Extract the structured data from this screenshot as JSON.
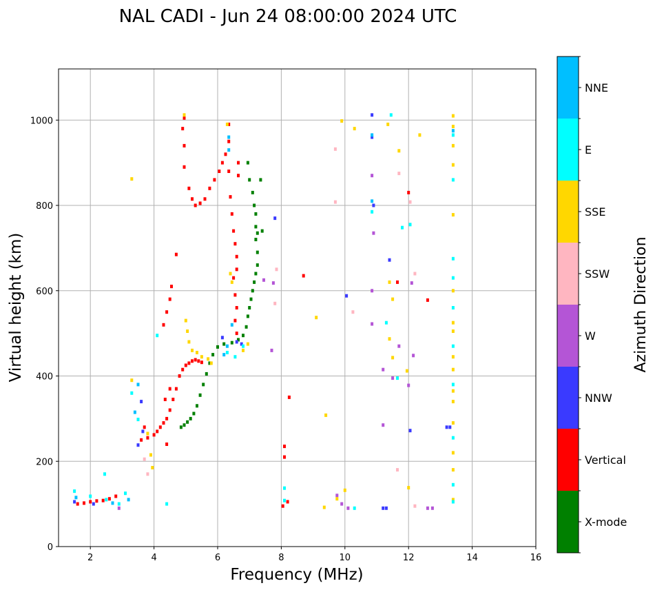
{
  "chart_data": {
    "type": "scatter",
    "title": "NAL CADI - Jun 24 08:00:00 2024 UTC",
    "xlabel": "Frequency (MHz)",
    "ylabel": "Virtual height (km)",
    "xlim": [
      1,
      16
    ],
    "ylim": [
      0,
      1120
    ],
    "x_ticks": [
      2,
      4,
      6,
      8,
      10,
      12,
      14,
      16
    ],
    "y_ticks": [
      0,
      200,
      400,
      600,
      800,
      1000
    ],
    "grid": true,
    "colorbar": {
      "label": "Azimuth Direction",
      "categories": [
        {
          "name": "X-mode",
          "color": "#008000"
        },
        {
          "name": "Vertical",
          "color": "#ff0000"
        },
        {
          "name": "NNW",
          "color": "#3a3aff"
        },
        {
          "name": "W",
          "color": "#b455d6"
        },
        {
          "name": "SSW",
          "color": "#ffb6c1"
        },
        {
          "name": "SSE",
          "color": "#ffd700"
        },
        {
          "name": "E",
          "color": "#00ffff"
        },
        {
          "name": "NNE",
          "color": "#00bfff"
        }
      ]
    },
    "series": [
      {
        "name": "X-mode",
        "points": [
          [
            4.85,
            280
          ],
          [
            4.95,
            285
          ],
          [
            5.05,
            292
          ],
          [
            5.15,
            300
          ],
          [
            5.25,
            312
          ],
          [
            5.35,
            330
          ],
          [
            5.45,
            355
          ],
          [
            5.55,
            380
          ],
          [
            5.65,
            405
          ],
          [
            5.75,
            430
          ],
          [
            5.85,
            450
          ],
          [
            6.0,
            468
          ],
          [
            6.2,
            475
          ],
          [
            6.45,
            478
          ],
          [
            6.65,
            485
          ],
          [
            6.8,
            495
          ],
          [
            6.9,
            515
          ],
          [
            6.95,
            540
          ],
          [
            7.0,
            560
          ],
          [
            7.05,
            580
          ],
          [
            7.1,
            600
          ],
          [
            7.15,
            620
          ],
          [
            7.2,
            640
          ],
          [
            7.25,
            660
          ],
          [
            7.25,
            690
          ],
          [
            7.2,
            720
          ],
          [
            7.2,
            750
          ],
          [
            7.2,
            780
          ],
          [
            7.15,
            800
          ],
          [
            7.1,
            830
          ],
          [
            7.0,
            860
          ],
          [
            6.95,
            900
          ],
          [
            7.35,
            860
          ],
          [
            7.25,
            735
          ],
          [
            7.4,
            740
          ]
        ]
      },
      {
        "name": "Vertical",
        "points": [
          [
            1.6,
            100
          ],
          [
            1.8,
            102
          ],
          [
            2.0,
            105
          ],
          [
            2.2,
            107
          ],
          [
            2.4,
            108
          ],
          [
            2.6,
            112
          ],
          [
            2.8,
            118
          ],
          [
            3.6,
            250
          ],
          [
            3.8,
            255
          ],
          [
            4.0,
            262
          ],
          [
            4.1,
            270
          ],
          [
            4.2,
            280
          ],
          [
            4.3,
            290
          ],
          [
            4.4,
            300
          ],
          [
            4.5,
            320
          ],
          [
            4.6,
            345
          ],
          [
            4.7,
            370
          ],
          [
            4.8,
            400
          ],
          [
            4.9,
            415
          ],
          [
            5.0,
            425
          ],
          [
            5.1,
            430
          ],
          [
            5.2,
            435
          ],
          [
            5.3,
            438
          ],
          [
            5.4,
            435
          ],
          [
            5.5,
            432
          ],
          [
            4.3,
            520
          ],
          [
            4.4,
            550
          ],
          [
            4.5,
            580
          ],
          [
            4.55,
            610
          ],
          [
            4.7,
            685
          ],
          [
            4.95,
            940
          ],
          [
            4.9,
            980
          ],
          [
            4.95,
            1005
          ],
          [
            4.95,
            890
          ],
          [
            5.1,
            840
          ],
          [
            5.2,
            815
          ],
          [
            5.3,
            800
          ],
          [
            5.45,
            805
          ],
          [
            5.6,
            815
          ],
          [
            5.75,
            840
          ],
          [
            5.9,
            860
          ],
          [
            6.05,
            880
          ],
          [
            6.15,
            900
          ],
          [
            6.25,
            920
          ],
          [
            6.35,
            950
          ],
          [
            6.35,
            990
          ],
          [
            6.35,
            880
          ],
          [
            6.4,
            820
          ],
          [
            6.45,
            780
          ],
          [
            6.5,
            740
          ],
          [
            6.55,
            710
          ],
          [
            6.6,
            680
          ],
          [
            6.6,
            650
          ],
          [
            6.5,
            630
          ],
          [
            6.55,
            590
          ],
          [
            6.6,
            560
          ],
          [
            6.55,
            530
          ],
          [
            6.6,
            500
          ],
          [
            6.65,
            870
          ],
          [
            6.65,
            900
          ],
          [
            4.4,
            240
          ],
          [
            3.7,
            280
          ],
          [
            4.35,
            345
          ],
          [
            4.5,
            370
          ],
          [
            8.1,
            210
          ],
          [
            8.1,
            235
          ],
          [
            8.25,
            350
          ],
          [
            8.7,
            635
          ],
          [
            12.0,
            830
          ],
          [
            12.6,
            578
          ],
          [
            11.65,
            620
          ],
          [
            8.2,
            105
          ],
          [
            8.05,
            95
          ]
        ]
      },
      {
        "name": "NNW",
        "points": [
          [
            1.5,
            105
          ],
          [
            2.1,
            100
          ],
          [
            3.5,
            238
          ],
          [
            3.65,
            270
          ],
          [
            3.6,
            340
          ],
          [
            6.15,
            490
          ],
          [
            6.6,
            480
          ],
          [
            6.75,
            475
          ],
          [
            7.8,
            770
          ],
          [
            10.9,
            800
          ],
          [
            11.4,
            672
          ],
          [
            10.85,
            960
          ],
          [
            10.85,
            1012
          ],
          [
            12.05,
            272
          ],
          [
            13.3,
            280
          ],
          [
            11.3,
            90
          ],
          [
            10.05,
            588
          ],
          [
            11.2,
            90
          ],
          [
            13.2,
            280
          ]
        ]
      },
      {
        "name": "W",
        "points": [
          [
            2.9,
            90
          ],
          [
            10.85,
            870
          ],
          [
            10.9,
            735
          ],
          [
            10.85,
            600
          ],
          [
            10.85,
            522
          ],
          [
            11.2,
            415
          ],
          [
            11.5,
            395
          ],
          [
            12.0,
            378
          ],
          [
            12.15,
            448
          ],
          [
            11.2,
            285
          ],
          [
            12.6,
            90
          ],
          [
            12.75,
            90
          ],
          [
            9.9,
            100
          ],
          [
            10.1,
            90
          ],
          [
            9.75,
            120
          ],
          [
            7.75,
            618
          ],
          [
            7.7,
            460
          ],
          [
            7.45,
            625
          ],
          [
            11.7,
            470
          ],
          [
            12.1,
            618
          ]
        ]
      },
      {
        "name": "SSW",
        "points": [
          [
            9.7,
            808
          ],
          [
            9.7,
            932
          ],
          [
            11.7,
            875
          ],
          [
            12.05,
            808
          ],
          [
            12.2,
            640
          ],
          [
            11.65,
            180
          ],
          [
            7.8,
            570
          ],
          [
            7.85,
            650
          ],
          [
            10.25,
            550
          ],
          [
            12.2,
            95
          ],
          [
            3.8,
            170
          ],
          [
            3.7,
            205
          ]
        ]
      },
      {
        "name": "SSE",
        "points": [
          [
            3.3,
            862
          ],
          [
            4.95,
            1012
          ],
          [
            5.0,
            530
          ],
          [
            5.05,
            505
          ],
          [
            5.1,
            480
          ],
          [
            5.2,
            460
          ],
          [
            5.35,
            455
          ],
          [
            5.5,
            445
          ],
          [
            5.7,
            440
          ],
          [
            5.8,
            430
          ],
          [
            6.3,
            990
          ],
          [
            6.4,
            640
          ],
          [
            6.45,
            620
          ],
          [
            6.8,
            460
          ],
          [
            6.95,
            475
          ],
          [
            9.9,
            998
          ],
          [
            10.3,
            980
          ],
          [
            11.35,
            990
          ],
          [
            11.7,
            928
          ],
          [
            12.35,
            965
          ],
          [
            11.4,
            620
          ],
          [
            11.5,
            580
          ],
          [
            11.5,
            443
          ],
          [
            11.4,
            487
          ],
          [
            11.95,
            412
          ],
          [
            12.0,
            138
          ],
          [
            9.1,
            537
          ],
          [
            9.4,
            308
          ],
          [
            9.35,
            92
          ],
          [
            9.75,
            112
          ],
          [
            10.0,
            132
          ],
          [
            3.3,
            390
          ],
          [
            3.8,
            265
          ],
          [
            3.9,
            215
          ],
          [
            3.95,
            185
          ],
          [
            13.4,
            1010
          ],
          [
            13.4,
            985
          ],
          [
            13.4,
            940
          ],
          [
            13.4,
            895
          ],
          [
            13.4,
            778
          ],
          [
            13.4,
            600
          ],
          [
            13.4,
            525
          ],
          [
            13.4,
            505
          ],
          [
            13.4,
            445
          ],
          [
            13.4,
            415
          ],
          [
            13.4,
            365
          ],
          [
            13.4,
            340
          ],
          [
            13.4,
            290
          ],
          [
            13.4,
            220
          ],
          [
            13.4,
            180
          ],
          [
            13.4,
            110
          ]
        ]
      },
      {
        "name": "E",
        "points": [
          [
            1.5,
            130
          ],
          [
            2.0,
            118
          ],
          [
            2.5,
            110
          ],
          [
            2.9,
            100
          ],
          [
            3.1,
            125
          ],
          [
            2.45,
            170
          ],
          [
            3.3,
            360
          ],
          [
            3.5,
            298
          ],
          [
            4.1,
            495
          ],
          [
            4.4,
            100
          ],
          [
            6.3,
            455
          ],
          [
            6.55,
            445
          ],
          [
            6.8,
            470
          ],
          [
            10.85,
            785
          ],
          [
            11.3,
            525
          ],
          [
            11.45,
            1012
          ],
          [
            11.65,
            395
          ],
          [
            11.8,
            748
          ],
          [
            12.05,
            755
          ],
          [
            13.4,
            860
          ],
          [
            13.4,
            675
          ],
          [
            13.4,
            630
          ],
          [
            13.4,
            560
          ],
          [
            13.4,
            470
          ],
          [
            13.4,
            380
          ],
          [
            13.4,
            255
          ],
          [
            13.4,
            145
          ],
          [
            13.4,
            105
          ],
          [
            8.1,
            137
          ],
          [
            8.1,
            108
          ],
          [
            10.3,
            90
          ],
          [
            13.4,
            965
          ]
        ]
      },
      {
        "name": "NNE",
        "points": [
          [
            1.55,
            115
          ],
          [
            2.7,
            102
          ],
          [
            3.2,
            110
          ],
          [
            3.4,
            315
          ],
          [
            3.5,
            380
          ],
          [
            6.3,
            470
          ],
          [
            6.2,
            450
          ],
          [
            6.35,
            960
          ],
          [
            6.35,
            930
          ],
          [
            6.45,
            520
          ],
          [
            10.85,
            810
          ],
          [
            10.85,
            965
          ],
          [
            13.4,
            975
          ]
        ]
      }
    ]
  }
}
